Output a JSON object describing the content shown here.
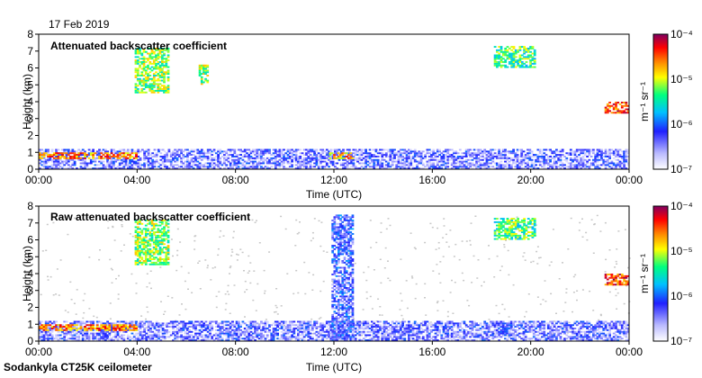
{
  "date_label": "17 Feb 2019",
  "footer": "Sodankyla CT25K ceilometer",
  "chart_data": [
    {
      "type": "heatmap",
      "title": "Attenuated backscatter coefficient",
      "xlabel": "Time (UTC)",
      "ylabel": "Height (km)",
      "xticks": [
        "00:00",
        "04:00",
        "08:00",
        "12:00",
        "16:00",
        "20:00",
        "00:00"
      ],
      "yticks": [
        "0",
        "1",
        "2",
        "3",
        "4",
        "5",
        "6",
        "7",
        "8"
      ],
      "xlim": [
        0,
        24
      ],
      "ylim": [
        0,
        8
      ],
      "colorbar": {
        "label": "m⁻¹ sr⁻¹",
        "ticks": [
          "10⁻⁴",
          "10⁻⁵",
          "10⁻⁶",
          "10⁻⁷"
        ],
        "range": [
          1e-07,
          0.0001
        ],
        "scale": "log"
      },
      "features": [
        {
          "name": "surface layer",
          "t0": 0,
          "t1": 24,
          "h0": 0,
          "h1": 1.2,
          "level": 0.2
        },
        {
          "name": "boundary layer",
          "t0": 0,
          "t1": 4,
          "h0": 0.6,
          "h1": 1.0,
          "level": 0.8
        },
        {
          "name": "cloud 04:00",
          "t0": 3.9,
          "t1": 5.3,
          "h0": 4.5,
          "h1": 7.2,
          "level": 0.6
        },
        {
          "name": "cloud 06:30",
          "t0": 6.5,
          "t1": 6.9,
          "h0": 5.0,
          "h1": 6.2,
          "level": 0.6
        },
        {
          "name": "cloud 18:30",
          "t0": 18.5,
          "t1": 20.2,
          "h0": 6.0,
          "h1": 7.3,
          "level": 0.55
        },
        {
          "name": "low cloud 12:00",
          "t0": 11.8,
          "t1": 12.8,
          "h0": 0.6,
          "h1": 1.0,
          "level": 0.75
        },
        {
          "name": "cloud 23:30",
          "t0": 23.0,
          "t1": 24,
          "h0": 3.3,
          "h1": 4.0,
          "level": 0.85
        }
      ]
    },
    {
      "type": "heatmap",
      "title": "Raw attenuated backscatter coefficient",
      "xlabel": "Time (UTC)",
      "ylabel": "Height (km)",
      "xticks": [
        "00:00",
        "04:00",
        "08:00",
        "12:00",
        "16:00",
        "20:00",
        "00:00"
      ],
      "yticks": [
        "0",
        "1",
        "2",
        "3",
        "4",
        "5",
        "6",
        "7",
        "8"
      ],
      "xlim": [
        0,
        24
      ],
      "ylim": [
        0,
        8
      ],
      "colorbar": {
        "label": "m⁻¹ sr⁻¹",
        "ticks": [
          "10⁻⁴",
          "10⁻⁵",
          "10⁻⁶",
          "10⁻⁷"
        ],
        "range": [
          1e-07,
          0.0001
        ],
        "scale": "log"
      },
      "features": [
        {
          "name": "surface layer",
          "t0": 0,
          "t1": 24,
          "h0": 0,
          "h1": 1.2,
          "level": 0.2
        },
        {
          "name": "boundary layer",
          "t0": 0,
          "t1": 4,
          "h0": 0.6,
          "h1": 1.0,
          "level": 0.8
        },
        {
          "name": "noise column 12:00",
          "t0": 11.9,
          "t1": 12.8,
          "h0": 0,
          "h1": 7.5,
          "level": 0.25
        },
        {
          "name": "cloud 04:00",
          "t0": 3.9,
          "t1": 5.3,
          "h0": 4.5,
          "h1": 7.2,
          "level": 0.6
        },
        {
          "name": "cloud 18:30",
          "t0": 18.5,
          "t1": 20.2,
          "h0": 6.0,
          "h1": 7.3,
          "level": 0.55
        },
        {
          "name": "cloud 23:30",
          "t0": 23.0,
          "t1": 24,
          "h0": 3.3,
          "h1": 4.0,
          "level": 0.85
        }
      ]
    }
  ]
}
